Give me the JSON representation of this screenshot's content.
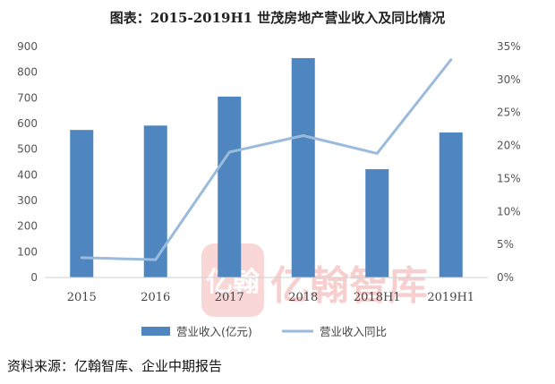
{
  "chart_data": {
    "type": "bar",
    "title": "图表：2015-2019H1 世茂房地产营业收入及同比情况",
    "categories": [
      "2015",
      "2016",
      "2017",
      "2018",
      "2018H1",
      "2019H1"
    ],
    "series": [
      {
        "name": "营业收入(亿元)",
        "type": "bar",
        "axis": "left",
        "color": "#4f86c0",
        "values": [
          575,
          592,
          705,
          855,
          422,
          565
        ]
      },
      {
        "name": "营业收入同比",
        "type": "line",
        "axis": "right",
        "color": "#9bbbdc",
        "values": [
          3.0,
          2.7,
          19.0,
          21.5,
          18.8,
          33.0
        ]
      }
    ],
    "y_left": {
      "min": 0,
      "max": 900,
      "step": 100,
      "ticks": [
        "0",
        "100",
        "200",
        "300",
        "400",
        "500",
        "600",
        "700",
        "800",
        "900"
      ]
    },
    "y_right": {
      "min": 0,
      "max": 35,
      "step": 5,
      "ticks": [
        "0%",
        "5%",
        "10%",
        "15%",
        "20%",
        "25%",
        "30%",
        "35%"
      ]
    },
    "grid": false,
    "legend_position": "bottom"
  },
  "watermark": {
    "logo_text": "亿翰",
    "brand_text": "亿翰智库",
    "color": "#f2a8a8"
  },
  "source_note": "资料来源：亿翰智库、企业中期报告"
}
